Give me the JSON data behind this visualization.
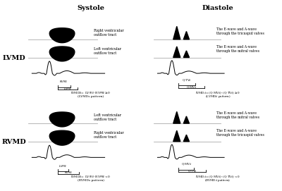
{
  "title_systole": "Systole",
  "title_diastole": "Diastole",
  "label_lvmd": "LVMD",
  "label_rvmd": "RVMD",
  "bg_color": "#ffffff",
  "cell_bg": "#ffffff",
  "border_color": "#888888",
  "line_color": "#aaaaaa",
  "lvmd_systole_labels": [
    "Right ventricular\noutflow tract",
    "Left ventricular\noutflow tract"
  ],
  "rvmd_systole_labels": [
    "Left ventricular\noutflow tract",
    "Right ventricular\noutflow tract"
  ],
  "lvmd_diastole_labels": [
    "The E-wave and A-wave\nthrough the tricuspid valves",
    "The E-wave and A-wave\nthrough the mitral valves"
  ],
  "rvmd_diastole_labels": [
    "The E-wave and A-wave\nthrough the mitral valves",
    "The E-wave and A-wave\nthrough the tricuspid valves"
  ],
  "lvmd_systole_eq1": "IVMD$_S$= LV$_{PRE}$- RV$_{PRE}$$\\geq$0",
  "lvmd_systole_eq2": "(LVMDs pattern)",
  "rvmd_systole_eq1": "IVMD$_S$= LV$_{PRE}$- RV$_{PRE}$$<$0",
  "rvmd_systole_eq2": "(RVMDs pattern)",
  "lvmd_diastole_eq1": "IVMD$_d$= (Q-MV$_d$)- (Q-TV$_d$)$\\geq$0",
  "lvmd_diastole_eq2": "(LVMD$_d$ pattern)",
  "rvmd_diastole_eq1": "IVMD$_d$= (Q-MV$_d$)- (Q-TV$_d$)$<$0",
  "rvmd_diastole_eq2": "(RVMD$_d$ pattern)"
}
